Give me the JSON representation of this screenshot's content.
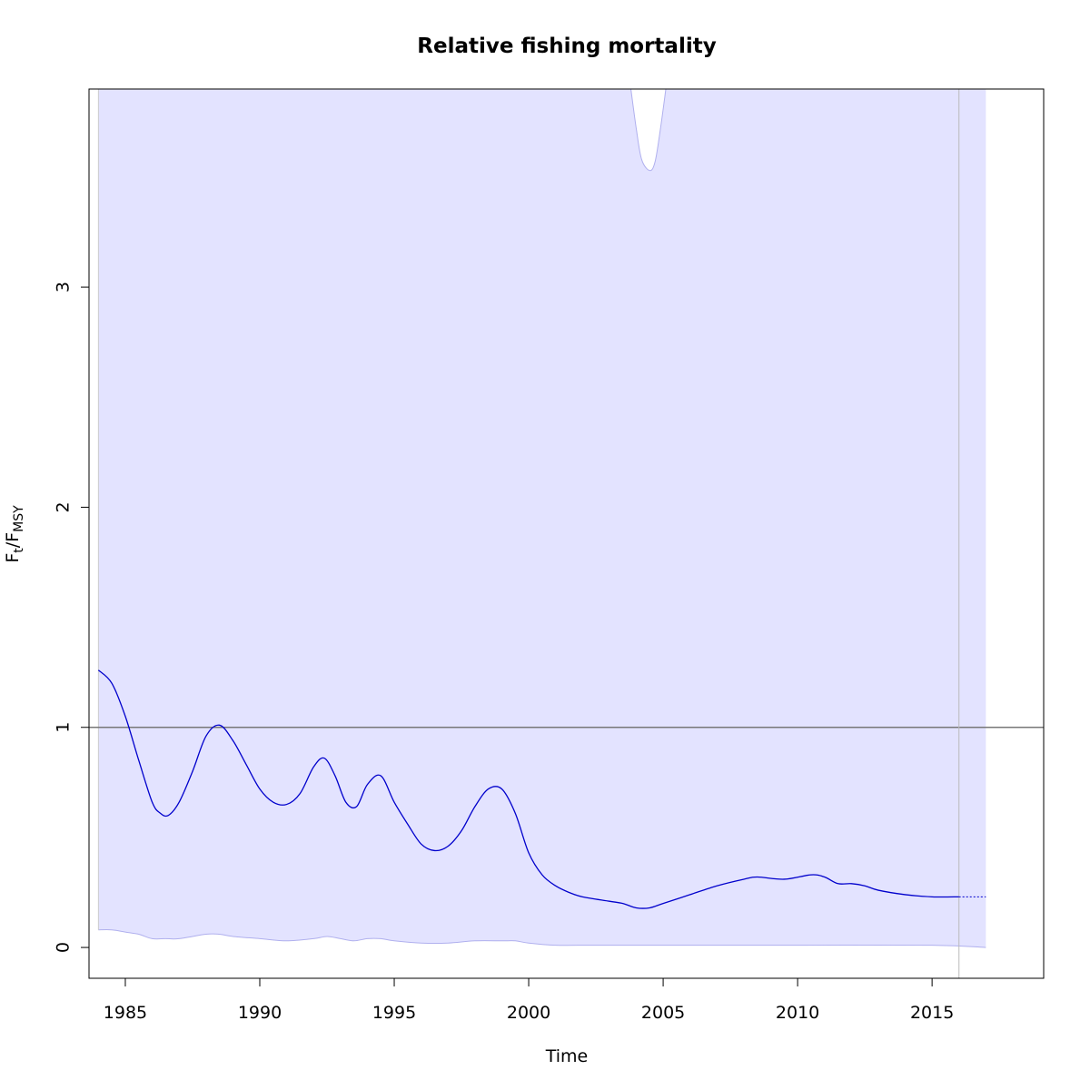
{
  "chart_data": {
    "type": "line",
    "title": "Relative fishing mortality",
    "xlabel": "Time",
    "ylabel": {
      "main": "F",
      "sub1": "t",
      "sep": "/F",
      "sub2": "MSY"
    },
    "xlim": [
      1983.65,
      2019.15
    ],
    "ylim": [
      -0.14,
      3.9
    ],
    "x_ticks": [
      1985,
      1990,
      1995,
      2000,
      2005,
      2010,
      2015
    ],
    "y_ticks": [
      0,
      1,
      2,
      3
    ],
    "reference_line_y": 1,
    "last_observation_x": 2016,
    "colors": {
      "estimate": "#0000cc",
      "band_fill": "#e3e3ff",
      "band_edge": "#b0b0ee",
      "reference": "#777777",
      "vertical_marker": "#bbbbbb"
    },
    "estimate": {
      "x": [
        1984.0,
        1984.5,
        1985.0,
        1985.5,
        1986.0,
        1986.3,
        1986.6,
        1987.0,
        1987.5,
        1988.0,
        1988.5,
        1989.0,
        1989.5,
        1990.0,
        1990.5,
        1991.0,
        1991.5,
        1992.0,
        1992.4,
        1992.8,
        1993.2,
        1993.6,
        1994.0,
        1994.5,
        1995.0,
        1995.5,
        1996.0,
        1996.5,
        1997.0,
        1997.5,
        1998.0,
        1998.5,
        1999.0,
        1999.5,
        2000.0,
        2000.5,
        2001.0,
        2001.5,
        2002.0,
        2003.0,
        2003.5,
        2004.0,
        2004.5,
        2005.0,
        2006.0,
        2007.0,
        2008.0,
        2008.5,
        2009.5,
        2010.5,
        2011.0,
        2011.5,
        2012.0,
        2012.5,
        2013.0,
        2014.0,
        2015.0,
        2016.0
      ],
      "y": [
        1.26,
        1.2,
        1.05,
        0.85,
        0.66,
        0.61,
        0.6,
        0.66,
        0.8,
        0.96,
        1.01,
        0.94,
        0.83,
        0.72,
        0.66,
        0.65,
        0.7,
        0.82,
        0.86,
        0.78,
        0.66,
        0.64,
        0.74,
        0.78,
        0.66,
        0.56,
        0.47,
        0.44,
        0.46,
        0.53,
        0.64,
        0.72,
        0.72,
        0.61,
        0.43,
        0.33,
        0.28,
        0.25,
        0.23,
        0.21,
        0.2,
        0.18,
        0.18,
        0.2,
        0.24,
        0.28,
        0.31,
        0.32,
        0.31,
        0.33,
        0.32,
        0.29,
        0.29,
        0.28,
        0.26,
        0.24,
        0.23,
        0.23
      ]
    },
    "forecast": {
      "x": [
        2016.0,
        2017.0
      ],
      "y": [
        0.23,
        0.23
      ]
    },
    "ci_upper": {
      "x": [
        2003.8,
        2004.0,
        2004.2,
        2004.5,
        2004.7,
        2004.9,
        2005.1
      ],
      "y": [
        3.9,
        3.72,
        3.58,
        3.53,
        3.57,
        3.72,
        3.9
      ]
    },
    "ci_lower": {
      "x": [
        1984.0,
        1984.5,
        1985.0,
        1985.5,
        1986.0,
        1986.5,
        1987.0,
        1988.0,
        1988.5,
        1989.0,
        1990.0,
        1991.0,
        1992.0,
        1992.5,
        1993.0,
        1993.5,
        1994.0,
        1994.5,
        1995.0,
        1996.0,
        1997.0,
        1998.0,
        1999.0,
        1999.5,
        2000.0,
        2001.0,
        2002.0,
        2005.0,
        2010.0,
        2015.0,
        2017.0
      ],
      "y": [
        0.08,
        0.08,
        0.07,
        0.06,
        0.04,
        0.04,
        0.04,
        0.06,
        0.06,
        0.05,
        0.04,
        0.03,
        0.04,
        0.05,
        0.04,
        0.03,
        0.04,
        0.04,
        0.03,
        0.02,
        0.02,
        0.03,
        0.03,
        0.03,
        0.02,
        0.01,
        0.01,
        0.01,
        0.01,
        0.01,
        0.0
      ]
    }
  }
}
